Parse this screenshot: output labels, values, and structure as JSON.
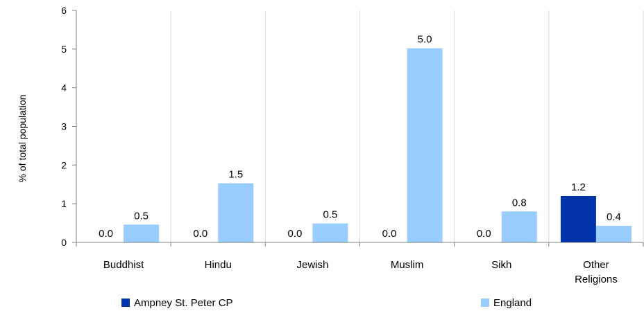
{
  "chart_data": {
    "type": "bar",
    "title": "",
    "xlabel": "",
    "ylabel": "% of total population",
    "ylim": [
      0,
      6
    ],
    "yticks": [
      0,
      1,
      2,
      3,
      4,
      5,
      6
    ],
    "grid": "vertical category separators",
    "legend_position": "bottom",
    "categories": [
      [
        "Buddhist"
      ],
      [
        "Hindu"
      ],
      [
        "Jewish"
      ],
      [
        "Muslim"
      ],
      [
        "Sikh"
      ],
      [
        "Other",
        "Religions"
      ]
    ],
    "series": [
      {
        "name": "Ampney St. Peter CP",
        "color": "#0033aa",
        "values": [
          0.0,
          0.0,
          0.0,
          0.0,
          0.0,
          1.2
        ],
        "labels": [
          "0.0",
          "0.0",
          "0.0",
          "0.0",
          "0.0",
          "1.2"
        ]
      },
      {
        "name": "England",
        "color": "#99ccff",
        "values": [
          0.46,
          1.53,
          0.49,
          5.02,
          0.8,
          0.43
        ],
        "labels": [
          "0.5",
          "1.5",
          "0.5",
          "5.0",
          "0.8",
          "0.4"
        ]
      }
    ]
  }
}
